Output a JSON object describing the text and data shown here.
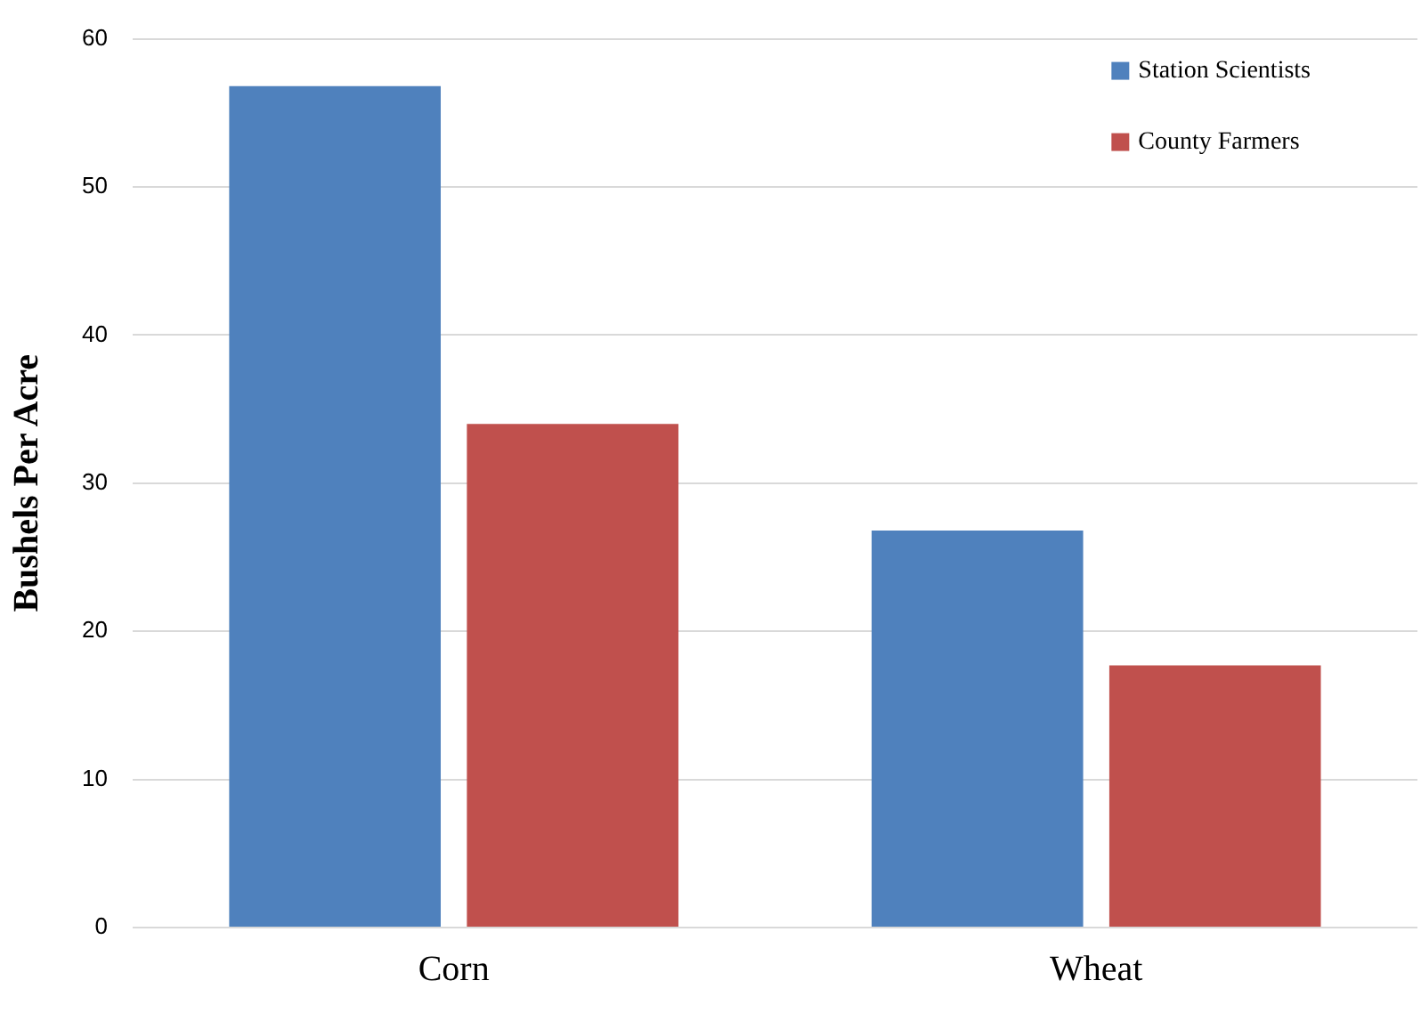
{
  "chart_data": {
    "type": "bar",
    "ylabel": "Bushels Per Acre",
    "categories": [
      "Corn",
      "Wheat"
    ],
    "series": [
      {
        "name": "Station Scientists",
        "color": "#4f81bd",
        "values": [
          56.8,
          26.8
        ]
      },
      {
        "name": "County Farmers",
        "color": "#c0504d",
        "values": [
          34,
          17.7
        ]
      }
    ],
    "ylim": [
      0,
      60
    ],
    "yticks": [
      0,
      10,
      20,
      30,
      40,
      50,
      60
    ],
    "grid": "y",
    "legend": "top right"
  }
}
